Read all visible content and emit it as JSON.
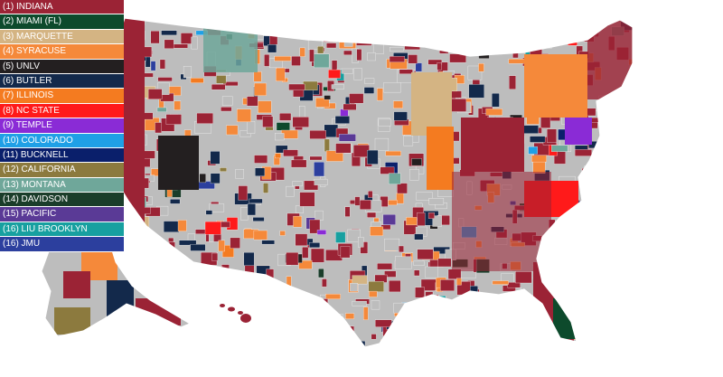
{
  "legend": [
    {
      "label": "(1) INDIANA",
      "color": "#9b2335"
    },
    {
      "label": "(2) MIAMI (FL)",
      "color": "#0d4a2c"
    },
    {
      "label": "(3) MARQUETTE",
      "color": "#d4b483"
    },
    {
      "label": "(4) SYRACUSE",
      "color": "#f5893a"
    },
    {
      "label": "(5) UNLV",
      "color": "#231f20"
    },
    {
      "label": "(6) BUTLER",
      "color": "#13294b"
    },
    {
      "label": "(7) ILLINOIS",
      "color": "#f47b20"
    },
    {
      "label": "(8) NC STATE",
      "color": "#ff1a1a"
    },
    {
      "label": "(9) TEMPLE",
      "color": "#8a2bd6"
    },
    {
      "label": "(10) COLORADO",
      "color": "#1fa0e6"
    },
    {
      "label": "(11) BUCKNELL",
      "color": "#0a1f6b"
    },
    {
      "label": "(12) CALIFORNIA",
      "color": "#8c7a3e"
    },
    {
      "label": "(13) MONTANA",
      "color": "#6fa79a"
    },
    {
      "label": "(14) DAVIDSON",
      "color": "#1a3d2a"
    },
    {
      "label": "(15) PACIFIC",
      "color": "#5a3a96"
    },
    {
      "label": "(16) LIU BROOKLYN",
      "color": "#17a0a0"
    },
    {
      "label": "(16) JMU",
      "color": "#2c3f9e"
    }
  ],
  "map_colors": {
    "background_county": "#bdbdbd",
    "border": "#ffffff"
  }
}
